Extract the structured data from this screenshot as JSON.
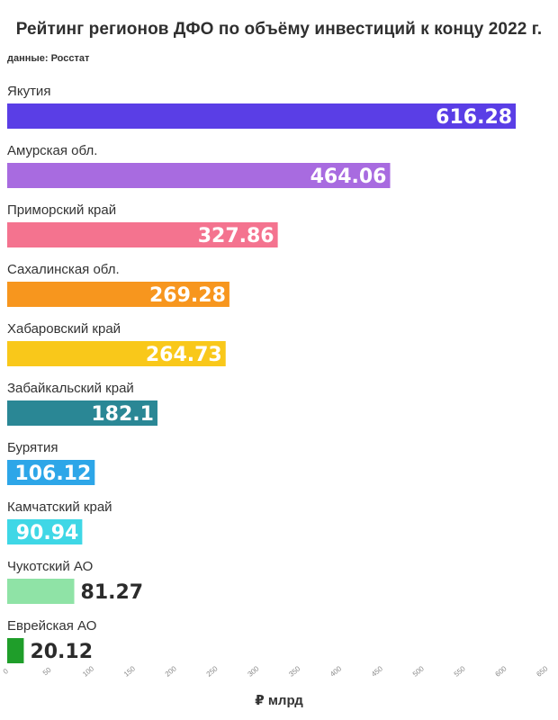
{
  "chart_data": {
    "type": "bar",
    "orientation": "horizontal",
    "title": "Рейтинг регионов ДФО по объёму инвестиций к концу 2022 г.",
    "subtitle": "данные: Росстат",
    "xlabel": "₽ млрд",
    "xlim": [
      0,
      650
    ],
    "ticks": [
      0,
      50,
      100,
      150,
      200,
      250,
      300,
      350,
      400,
      450,
      500,
      550,
      600,
      650
    ],
    "categories": [
      "Якутия",
      "Амурская обл.",
      "Приморский край",
      "Сахалинская обл.",
      "Хабаровский край",
      "Забайкальский край",
      "Бурятия",
      "Камчатский край",
      "Чукотский АО",
      "Еврейская АО"
    ],
    "values": [
      616.28,
      464.06,
      327.86,
      269.28,
      264.73,
      182.1,
      106.12,
      90.94,
      81.27,
      20.12
    ],
    "value_labels": [
      "616.28",
      "464.06",
      "327.86",
      "269.28",
      "264.73",
      "182.1",
      "106.12",
      "90.94",
      "81.27",
      "20.12"
    ],
    "colors": [
      "#5a3ee6",
      "#a86be0",
      "#f4738f",
      "#f7961e",
      "#f9c81a",
      "#2a8795",
      "#2da6e8",
      "#3fd7e6",
      "#8fe3a6",
      "#1f9e2a"
    ],
    "grid": false,
    "legend": "none"
  }
}
